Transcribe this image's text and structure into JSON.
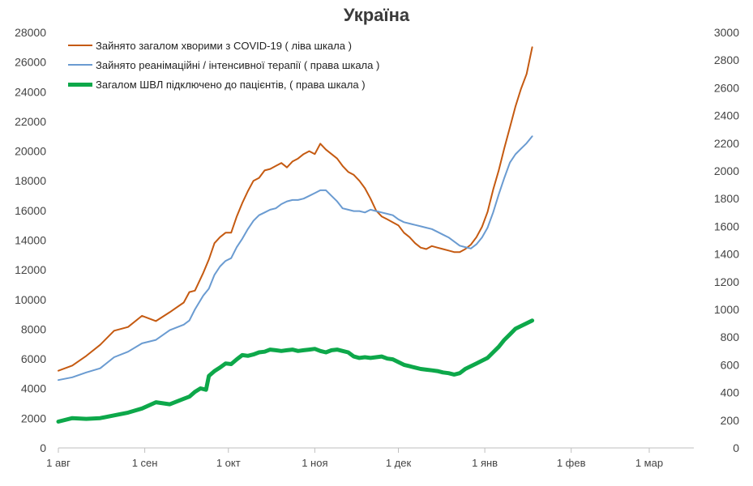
{
  "chart_data": {
    "type": "line",
    "title": "Україна",
    "xlabel": "",
    "ylabel_left": "",
    "ylabel_right": "",
    "x_tick_labels": [
      "1 авг",
      "1 сен",
      "1 окт",
      "1 ноя",
      "1 дек",
      "1 янв",
      "1 фев",
      "1 мар"
    ],
    "x_range_days": [
      0,
      228
    ],
    "x_tick_days": [
      0,
      31,
      61,
      92,
      122,
      153,
      184,
      212
    ],
    "ylim_left": [
      0,
      28000
    ],
    "yticks_left": [
      0,
      2000,
      4000,
      6000,
      8000,
      10000,
      12000,
      14000,
      16000,
      18000,
      20000,
      22000,
      24000,
      26000,
      28000
    ],
    "ylim_right": [
      0,
      3000
    ],
    "yticks_right": [
      0,
      200,
      400,
      600,
      800,
      1000,
      1200,
      1400,
      1600,
      1800,
      2000,
      2200,
      2400,
      2600,
      2800,
      3000
    ],
    "legend_position": "top-left",
    "series": [
      {
        "name": "Зайнято загалом хворими з COVID-19 ( ліва шкала )",
        "axis": "left",
        "color": "#c55a11",
        "width": 2,
        "points": [
          [
            0,
            5200
          ],
          [
            5,
            5550
          ],
          [
            10,
            6200
          ],
          [
            15,
            6950
          ],
          [
            20,
            7900
          ],
          [
            25,
            8150
          ],
          [
            30,
            8900
          ],
          [
            35,
            8550
          ],
          [
            40,
            9150
          ],
          [
            45,
            9800
          ],
          [
            47,
            10500
          ],
          [
            49,
            10600
          ],
          [
            52,
            11800
          ],
          [
            54,
            12700
          ],
          [
            56,
            13800
          ],
          [
            58,
            14200
          ],
          [
            60,
            14500
          ],
          [
            62,
            14500
          ],
          [
            64,
            15600
          ],
          [
            66,
            16500
          ],
          [
            68,
            17300
          ],
          [
            70,
            18000
          ],
          [
            72,
            18200
          ],
          [
            74,
            18700
          ],
          [
            76,
            18800
          ],
          [
            78,
            19000
          ],
          [
            80,
            19200
          ],
          [
            82,
            18900
          ],
          [
            84,
            19300
          ],
          [
            86,
            19500
          ],
          [
            88,
            19800
          ],
          [
            90,
            20000
          ],
          [
            92,
            19800
          ],
          [
            94,
            20500
          ],
          [
            96,
            20100
          ],
          [
            98,
            19800
          ],
          [
            100,
            19500
          ],
          [
            102,
            19000
          ],
          [
            104,
            18600
          ],
          [
            106,
            18400
          ],
          [
            108,
            18000
          ],
          [
            110,
            17500
          ],
          [
            112,
            16800
          ],
          [
            114,
            16000
          ],
          [
            116,
            15600
          ],
          [
            118,
            15400
          ],
          [
            120,
            15200
          ],
          [
            122,
            15000
          ],
          [
            124,
            14500
          ],
          [
            126,
            14200
          ],
          [
            128,
            13800
          ],
          [
            130,
            13500
          ],
          [
            132,
            13400
          ],
          [
            134,
            13600
          ],
          [
            136,
            13500
          ],
          [
            138,
            13400
          ],
          [
            140,
            13300
          ],
          [
            142,
            13200
          ],
          [
            144,
            13200
          ],
          [
            146,
            13400
          ],
          [
            148,
            13700
          ],
          [
            150,
            14200
          ],
          [
            152,
            14900
          ],
          [
            154,
            15900
          ],
          [
            156,
            17400
          ],
          [
            158,
            18700
          ],
          [
            160,
            20200
          ],
          [
            162,
            21600
          ],
          [
            164,
            23000
          ],
          [
            166,
            24200
          ],
          [
            168,
            25200
          ],
          [
            170,
            27000
          ]
        ]
      },
      {
        "name": "Зайнято реанімаційні / інтенсивної терапії ( права шкала )",
        "axis": "right",
        "color": "#6a9bd1",
        "width": 2,
        "points": [
          [
            0,
            490
          ],
          [
            5,
            510
          ],
          [
            10,
            545
          ],
          [
            15,
            575
          ],
          [
            20,
            655
          ],
          [
            25,
            695
          ],
          [
            30,
            755
          ],
          [
            35,
            780
          ],
          [
            40,
            850
          ],
          [
            45,
            890
          ],
          [
            47,
            920
          ],
          [
            49,
            1000
          ],
          [
            52,
            1100
          ],
          [
            54,
            1150
          ],
          [
            56,
            1250
          ],
          [
            58,
            1310
          ],
          [
            60,
            1350
          ],
          [
            62,
            1370
          ],
          [
            64,
            1450
          ],
          [
            66,
            1510
          ],
          [
            68,
            1580
          ],
          [
            70,
            1640
          ],
          [
            72,
            1680
          ],
          [
            74,
            1700
          ],
          [
            76,
            1720
          ],
          [
            78,
            1730
          ],
          [
            80,
            1760
          ],
          [
            82,
            1780
          ],
          [
            84,
            1790
          ],
          [
            86,
            1790
          ],
          [
            88,
            1800
          ],
          [
            90,
            1820
          ],
          [
            92,
            1840
          ],
          [
            94,
            1860
          ],
          [
            96,
            1860
          ],
          [
            98,
            1820
          ],
          [
            100,
            1780
          ],
          [
            102,
            1730
          ],
          [
            104,
            1720
          ],
          [
            106,
            1710
          ],
          [
            108,
            1710
          ],
          [
            110,
            1700
          ],
          [
            112,
            1720
          ],
          [
            114,
            1710
          ],
          [
            116,
            1700
          ],
          [
            118,
            1690
          ],
          [
            120,
            1680
          ],
          [
            122,
            1650
          ],
          [
            124,
            1630
          ],
          [
            126,
            1620
          ],
          [
            128,
            1610
          ],
          [
            130,
            1600
          ],
          [
            132,
            1590
          ],
          [
            134,
            1580
          ],
          [
            136,
            1560
          ],
          [
            138,
            1540
          ],
          [
            140,
            1520
          ],
          [
            142,
            1490
          ],
          [
            144,
            1460
          ],
          [
            146,
            1450
          ],
          [
            148,
            1440
          ],
          [
            150,
            1470
          ],
          [
            152,
            1520
          ],
          [
            154,
            1590
          ],
          [
            156,
            1700
          ],
          [
            158,
            1830
          ],
          [
            160,
            1950
          ],
          [
            162,
            2060
          ],
          [
            164,
            2120
          ],
          [
            166,
            2160
          ],
          [
            168,
            2200
          ],
          [
            170,
            2250
          ]
        ]
      },
      {
        "name": "Загалом ШВЛ  підключено до пацієнтів, ( права шкала )",
        "axis": "right",
        "color": "#0da84a",
        "width": 5,
        "points": [
          [
            0,
            190
          ],
          [
            5,
            215
          ],
          [
            10,
            210
          ],
          [
            15,
            215
          ],
          [
            20,
            235
          ],
          [
            25,
            255
          ],
          [
            30,
            285
          ],
          [
            35,
            330
          ],
          [
            40,
            315
          ],
          [
            45,
            355
          ],
          [
            47,
            370
          ],
          [
            49,
            405
          ],
          [
            51,
            430
          ],
          [
            53,
            420
          ],
          [
            54,
            520
          ],
          [
            56,
            555
          ],
          [
            58,
            580
          ],
          [
            60,
            610
          ],
          [
            62,
            605
          ],
          [
            64,
            640
          ],
          [
            66,
            670
          ],
          [
            68,
            665
          ],
          [
            70,
            675
          ],
          [
            72,
            690
          ],
          [
            74,
            695
          ],
          [
            76,
            710
          ],
          [
            78,
            705
          ],
          [
            80,
            700
          ],
          [
            82,
            705
          ],
          [
            84,
            710
          ],
          [
            86,
            700
          ],
          [
            88,
            705
          ],
          [
            90,
            710
          ],
          [
            92,
            715
          ],
          [
            94,
            700
          ],
          [
            96,
            690
          ],
          [
            98,
            705
          ],
          [
            100,
            710
          ],
          [
            102,
            700
          ],
          [
            104,
            690
          ],
          [
            106,
            660
          ],
          [
            108,
            650
          ],
          [
            110,
            655
          ],
          [
            112,
            650
          ],
          [
            114,
            655
          ],
          [
            116,
            660
          ],
          [
            118,
            645
          ],
          [
            120,
            640
          ],
          [
            122,
            620
          ],
          [
            124,
            600
          ],
          [
            126,
            590
          ],
          [
            128,
            580
          ],
          [
            130,
            570
          ],
          [
            132,
            565
          ],
          [
            134,
            560
          ],
          [
            136,
            555
          ],
          [
            138,
            545
          ],
          [
            140,
            540
          ],
          [
            142,
            530
          ],
          [
            144,
            540
          ],
          [
            146,
            570
          ],
          [
            148,
            590
          ],
          [
            150,
            610
          ],
          [
            152,
            630
          ],
          [
            154,
            650
          ],
          [
            156,
            690
          ],
          [
            158,
            730
          ],
          [
            160,
            780
          ],
          [
            162,
            820
          ],
          [
            164,
            860
          ],
          [
            166,
            880
          ],
          [
            168,
            900
          ],
          [
            170,
            920
          ]
        ]
      }
    ]
  }
}
